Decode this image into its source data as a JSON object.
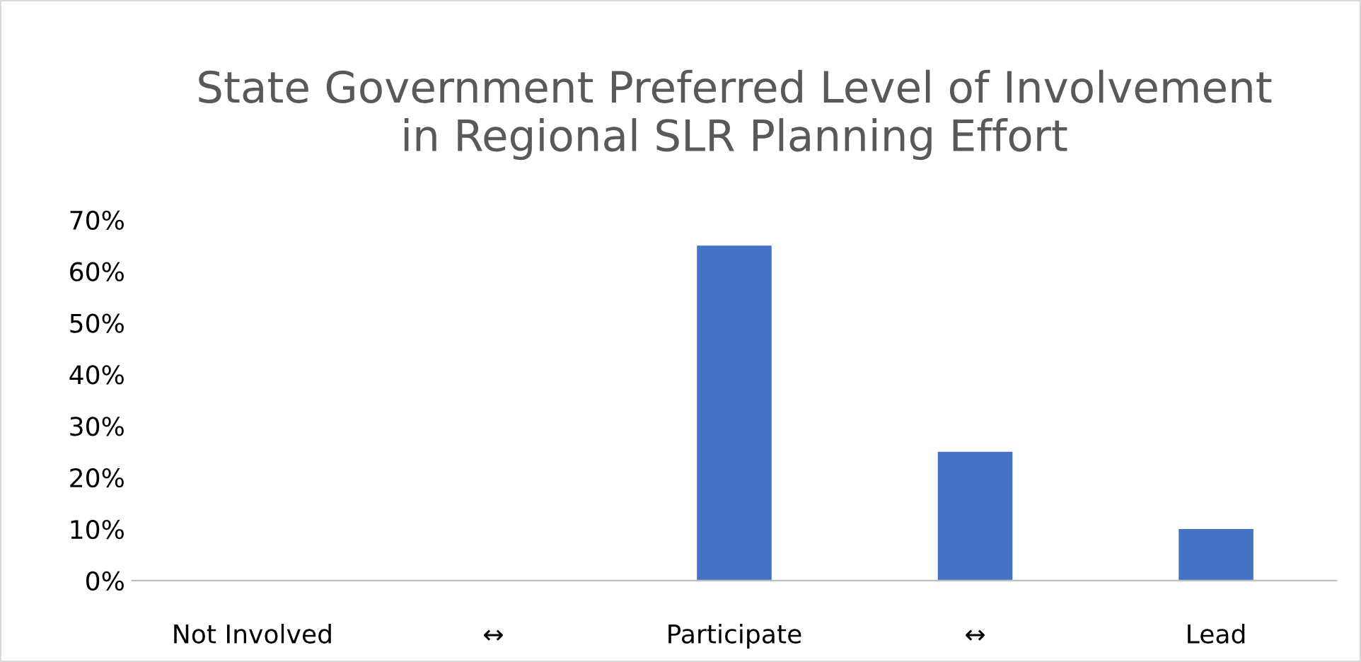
{
  "chart_data": {
    "type": "bar",
    "title": "State Government Preferred Level of Involvement\nin Regional SLR Planning Effort",
    "categories": [
      "Not Involved",
      "↔",
      "Participate",
      "↔",
      "Lead"
    ],
    "values": [
      0,
      0,
      65,
      25,
      10
    ],
    "color": "#4472c4",
    "ylim": [
      0,
      70
    ],
    "yticks": [
      {
        "value": 0,
        "label": "0%"
      },
      {
        "value": 10,
        "label": "10%"
      },
      {
        "value": 20,
        "label": "20%"
      },
      {
        "value": 30,
        "label": "30%"
      },
      {
        "value": 40,
        "label": "40%"
      },
      {
        "value": 50,
        "label": "50%"
      },
      {
        "value": 60,
        "label": "60%"
      },
      {
        "value": 70,
        "label": "70%"
      }
    ],
    "grid": false
  }
}
